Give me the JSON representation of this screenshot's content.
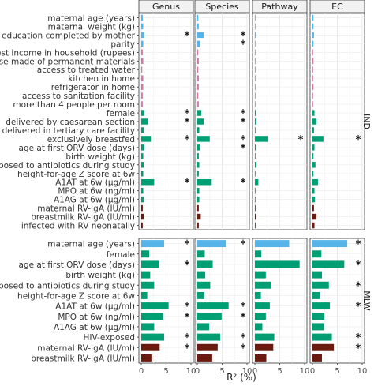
{
  "chart_data": {
    "type": "bar",
    "orientation": "horizontal",
    "xlabel": "R² (%)",
    "xlim": [
      0,
      10
    ],
    "xticks": [
      0,
      5,
      10
    ],
    "grid": true,
    "facets": [
      "Genus",
      "Species",
      "Pathway",
      "EC"
    ],
    "category_colors": {
      "environment": "#cc79a7",
      "maternal": "#56b4e9",
      "clinical": "#009e73",
      "immune": "#6b1a0f"
    },
    "sig_marker": "*",
    "panels": [
      {
        "label": "IND",
        "rows": [
          {
            "name": "maternal age (years)",
            "cat": "maternal",
            "values": [
              0.3,
              0.2,
              0.1,
              0.2
            ],
            "sig": [
              false,
              false,
              false,
              false
            ]
          },
          {
            "name": "maternal weight (kg)",
            "cat": "maternal",
            "values": [
              0.4,
              0.3,
              0.1,
              0.2
            ],
            "sig": [
              false,
              false,
              false,
              false
            ]
          },
          {
            "name": "years of education completed by mother",
            "cat": "maternal",
            "values": [
              0.6,
              1.3,
              0.2,
              0.3
            ],
            "sig": [
              true,
              true,
              false,
              false
            ]
          },
          {
            "name": "parity",
            "cat": "maternal",
            "values": [
              0.4,
              0.6,
              0.1,
              0.2
            ],
            "sig": [
              false,
              true,
              false,
              false
            ]
          },
          {
            "name": "highest income in household (rupees)",
            "cat": "environment",
            "values": [
              0.3,
              0.2,
              0.1,
              0.1
            ],
            "sig": [
              false,
              false,
              false,
              false
            ]
          },
          {
            "name": "house made of permanent materials",
            "cat": "environment",
            "values": [
              0.4,
              0.3,
              0.1,
              0.2
            ],
            "sig": [
              false,
              false,
              false,
              false
            ]
          },
          {
            "name": "access to treated water",
            "cat": "environment",
            "values": [
              0.2,
              0.2,
              0.1,
              0.1
            ],
            "sig": [
              false,
              false,
              false,
              false
            ]
          },
          {
            "name": "kitchen in home",
            "cat": "environment",
            "values": [
              0.4,
              0.3,
              0.1,
              0.1
            ],
            "sig": [
              false,
              false,
              false,
              false
            ]
          },
          {
            "name": "refrigerator in home",
            "cat": "environment",
            "values": [
              0.4,
              0.3,
              0.1,
              0.2
            ],
            "sig": [
              false,
              false,
              false,
              false
            ]
          },
          {
            "name": "access to sanitation facility",
            "cat": "environment",
            "values": [
              0.3,
              0.2,
              0.1,
              0.1
            ],
            "sig": [
              false,
              false,
              false,
              false
            ]
          },
          {
            "name": "more than 4 people per room",
            "cat": "environment",
            "values": [
              0.3,
              0.3,
              0.1,
              0.1
            ],
            "sig": [
              false,
              false,
              false,
              false
            ]
          },
          {
            "name": "female",
            "cat": "clinical",
            "values": [
              0.6,
              0.8,
              0.2,
              0.4
            ],
            "sig": [
              true,
              true,
              false,
              false
            ]
          },
          {
            "name": "delivered by caesarean section",
            "cat": "clinical",
            "values": [
              1.3,
              1.3,
              0.3,
              0.8
            ],
            "sig": [
              true,
              true,
              false,
              false
            ]
          },
          {
            "name": "delivered in tertiary care facility",
            "cat": "clinical",
            "values": [
              0.5,
              0.4,
              0.1,
              0.3
            ],
            "sig": [
              false,
              false,
              false,
              false
            ]
          },
          {
            "name": "exclusively breastfed",
            "cat": "clinical",
            "values": [
              2.1,
              2.5,
              2.7,
              2.2
            ],
            "sig": [
              true,
              true,
              true,
              true
            ]
          },
          {
            "name": "age at first ORV dose (days)",
            "cat": "clinical",
            "values": [
              0.6,
              0.5,
              0.2,
              0.4
            ],
            "sig": [
              false,
              true,
              false,
              false
            ]
          },
          {
            "name": "birth weight (kg)",
            "cat": "clinical",
            "values": [
              0.4,
              0.3,
              0.1,
              0.2
            ],
            "sig": [
              false,
              false,
              false,
              false
            ]
          },
          {
            "name": "exposed to antibiotics during study",
            "cat": "clinical",
            "values": [
              0.5,
              0.4,
              0.3,
              0.6
            ],
            "sig": [
              false,
              false,
              false,
              false
            ]
          },
          {
            "name": "height-for-age Z score at 6w",
            "cat": "clinical",
            "values": [
              0.4,
              0.3,
              0.1,
              0.2
            ],
            "sig": [
              false,
              false,
              false,
              false
            ]
          },
          {
            "name": "A1AT at 6w (µg/ml)",
            "cat": "clinical",
            "values": [
              2.6,
              2.9,
              0.7,
              1.1
            ],
            "sig": [
              true,
              true,
              false,
              false
            ]
          },
          {
            "name": "MPO at 6w (ng/ml)",
            "cat": "clinical",
            "values": [
              0.4,
              0.4,
              0.1,
              0.4
            ],
            "sig": [
              false,
              false,
              false,
              false
            ]
          },
          {
            "name": "A1AG at 6w (µg/ml)",
            "cat": "clinical",
            "values": [
              0.5,
              0.4,
              0.1,
              0.5
            ],
            "sig": [
              false,
              false,
              false,
              false
            ]
          },
          {
            "name": "maternal RV-IgA (IU/ml)",
            "cat": "immune",
            "values": [
              0.3,
              0.3,
              0.1,
              0.3
            ],
            "sig": [
              false,
              false,
              false,
              false
            ]
          },
          {
            "name": "breastmilk RV-IgA (IU/ml)",
            "cat": "immune",
            "values": [
              0.5,
              0.7,
              0.2,
              0.8
            ],
            "sig": [
              false,
              false,
              false,
              false
            ]
          },
          {
            "name": "infected with RV neonatally",
            "cat": "immune",
            "values": [
              0.3,
              0.3,
              0.1,
              0.4
            ],
            "sig": [
              false,
              false,
              false,
              false
            ]
          }
        ]
      },
      {
        "label": "MLW",
        "rows": [
          {
            "name": "maternal age (years)",
            "cat": "maternal",
            "values": [
              4.6,
              5.8,
              6.9,
              7.0
            ],
            "sig": [
              true,
              true,
              false,
              true
            ]
          },
          {
            "name": "female",
            "cat": "clinical",
            "values": [
              1.6,
              1.5,
              1.3,
              1.8
            ],
            "sig": [
              false,
              false,
              false,
              false
            ]
          },
          {
            "name": "age at first ORV dose (days)",
            "cat": "clinical",
            "values": [
              3.6,
              3.1,
              9.0,
              6.4
            ],
            "sig": [
              true,
              false,
              false,
              true
            ]
          },
          {
            "name": "birth weight (kg)",
            "cat": "clinical",
            "values": [
              1.8,
              1.6,
              2.2,
              1.9
            ],
            "sig": [
              false,
              false,
              false,
              false
            ]
          },
          {
            "name": "exposed to antibiotics during study",
            "cat": "clinical",
            "values": [
              2.6,
              2.6,
              3.3,
              3.3
            ],
            "sig": [
              false,
              false,
              false,
              true
            ]
          },
          {
            "name": "height-for-age Z score at 6w",
            "cat": "clinical",
            "values": [
              1.2,
              1.4,
              1.2,
              1.5
            ],
            "sig": [
              false,
              false,
              false,
              false
            ]
          },
          {
            "name": "A1AT at 6w (µg/ml)",
            "cat": "clinical",
            "values": [
              5.5,
              6.3,
              3.0,
              3.5
            ],
            "sig": [
              true,
              true,
              false,
              true
            ]
          },
          {
            "name": "MPO at 6w (ng/ml)",
            "cat": "clinical",
            "values": [
              4.4,
              4.9,
              2.2,
              2.4
            ],
            "sig": [
              true,
              true,
              false,
              false
            ]
          },
          {
            "name": "A1AG at 6w (µg/ml)",
            "cat": "clinical",
            "values": [
              2.6,
              2.4,
              1.5,
              2.3
            ],
            "sig": [
              false,
              false,
              false,
              false
            ]
          },
          {
            "name": "HIV-exposed",
            "cat": "clinical",
            "values": [
              4.6,
              4.6,
              3.9,
              3.9
            ],
            "sig": [
              true,
              true,
              false,
              true
            ]
          },
          {
            "name": "maternal RV-IgA (IU/ml)",
            "cat": "immune",
            "values": [
              3.7,
              4.1,
              3.7,
              4.3
            ],
            "sig": [
              true,
              true,
              false,
              true
            ]
          },
          {
            "name": "breastmilk RV-IgA (IU/ml)",
            "cat": "immune",
            "values": [
              2.2,
              3.0,
              2.3,
              1.9
            ],
            "sig": [
              false,
              false,
              false,
              false
            ]
          }
        ]
      }
    ]
  }
}
